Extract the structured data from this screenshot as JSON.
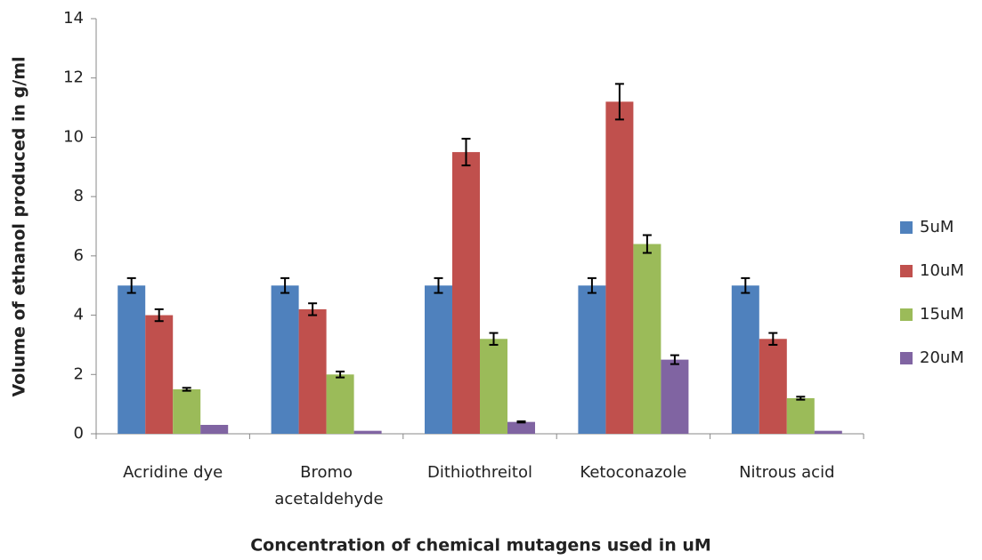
{
  "chart_data": {
    "type": "bar",
    "x_label": "Concentration of chemical mutagens used in uM",
    "y_label": "Volume of ethanol produced in g/ml",
    "categories": [
      "Acridine dye",
      "Bromo acetaldehyde",
      "Dithiothreitol",
      "Ketoconazole",
      "Nitrous acid"
    ],
    "series": [
      {
        "name": "5uM",
        "color": "#4f81bd",
        "values": [
          5,
          5,
          5,
          5,
          5
        ],
        "errors": [
          0.25,
          0.25,
          0.25,
          0.25,
          0.25
        ]
      },
      {
        "name": "10uM",
        "color": "#c0504d",
        "values": [
          4,
          4.2,
          9.5,
          11.2,
          3.2
        ],
        "errors": [
          0.2,
          0.2,
          0.45,
          0.6,
          0.2
        ]
      },
      {
        "name": "15uM",
        "color": "#9bbb59",
        "values": [
          1.5,
          2,
          3.2,
          6.4,
          1.2
        ],
        "errors": [
          0.05,
          0.1,
          0.2,
          0.3,
          0.05
        ]
      },
      {
        "name": "20uM",
        "color": "#8064a2",
        "values": [
          0.3,
          0.1,
          0.4,
          2.5,
          0.1
        ],
        "errors": [
          0,
          0,
          0.02,
          0.15,
          0
        ]
      }
    ],
    "ylim": [
      0,
      14
    ],
    "yticks": [
      0,
      2,
      4,
      6,
      8,
      10,
      12,
      14
    ],
    "legend": "right"
  }
}
